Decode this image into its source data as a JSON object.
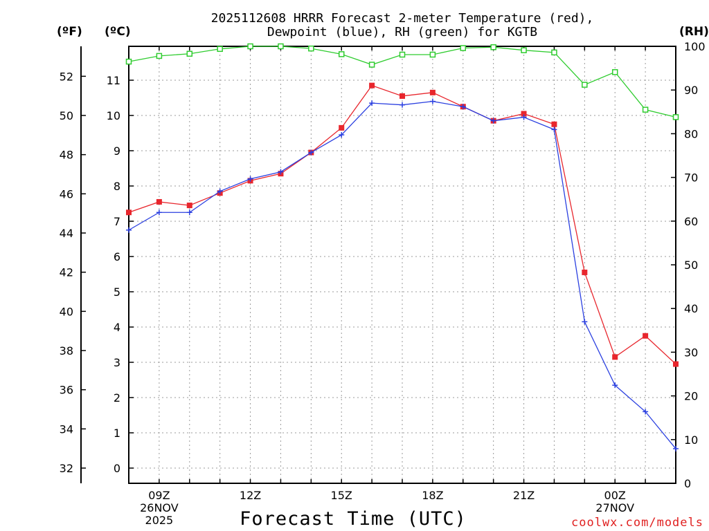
{
  "chart_data": {
    "type": "line",
    "title_line1": "2025112608 HRRR Forecast 2-meter Temperature (red),",
    "title_line2": "Dewpoint (blue), RH (green) for KGTB",
    "unit_f": "(ºF)",
    "unit_c": "(ºC)",
    "unit_rh": "(RH)",
    "xlabel": "Forecast Time (UTC)",
    "credit": "coolwx.com/models",
    "x": [
      8,
      9,
      10,
      11,
      12,
      13,
      14,
      15,
      16,
      17,
      18,
      19,
      20,
      21,
      22,
      23,
      24,
      25,
      26
    ],
    "x_range": [
      8,
      26
    ],
    "ylim_c": [
      -0.5,
      12
    ],
    "ylim_rh": [
      0,
      100
    ],
    "f_ticks": [
      "32",
      "34",
      "36",
      "38",
      "40",
      "42",
      "44",
      "46",
      "48",
      "50",
      "52"
    ],
    "c_ticks": [
      "0",
      "1",
      "2",
      "3",
      "4",
      "5",
      "6",
      "7",
      "8",
      "9",
      "10",
      "11"
    ],
    "rh_ticks": [
      "0",
      "10",
      "20",
      "30",
      "40",
      "50",
      "60",
      "70",
      "80",
      "90",
      "100"
    ],
    "x_tick_labels": [
      {
        "x": 9,
        "lines": [
          "09Z",
          "26NOV",
          "2025"
        ]
      },
      {
        "x": 12,
        "lines": [
          "12Z"
        ]
      },
      {
        "x": 15,
        "lines": [
          "15Z"
        ]
      },
      {
        "x": 18,
        "lines": [
          "18Z"
        ]
      },
      {
        "x": 21,
        "lines": [
          "21Z"
        ]
      },
      {
        "x": 24,
        "lines": [
          "00Z",
          "27NOV"
        ]
      }
    ],
    "series": [
      {
        "name": "Temperature",
        "unit": "C",
        "color": "#e8262d",
        "marker": "square-filled",
        "values": [
          7.25,
          7.55,
          7.45,
          7.8,
          8.15,
          8.35,
          8.95,
          9.65,
          10.85,
          10.55,
          10.65,
          10.25,
          9.85,
          10.05,
          9.75,
          5.55,
          3.15,
          3.75,
          2.95
        ]
      },
      {
        "name": "Dewpoint",
        "unit": "C",
        "color": "#2a3fe0",
        "marker": "plus",
        "values": [
          6.75,
          7.25,
          7.25,
          7.85,
          8.2,
          8.4,
          8.95,
          9.45,
          10.35,
          10.3,
          10.4,
          10.25,
          9.85,
          9.95,
          9.6,
          4.15,
          2.35,
          1.6,
          0.55
        ]
      },
      {
        "name": "RH",
        "unit": "%",
        "color": "#2ecc2e",
        "marker": "square-open",
        "values": [
          96.5,
          97.8,
          98.3,
          99.4,
          100,
          100,
          99.5,
          98.2,
          95.8,
          98.1,
          98.1,
          99.6,
          99.8,
          99.1,
          98.6,
          91.2,
          94.1,
          85.5,
          83.8
        ]
      }
    ]
  }
}
